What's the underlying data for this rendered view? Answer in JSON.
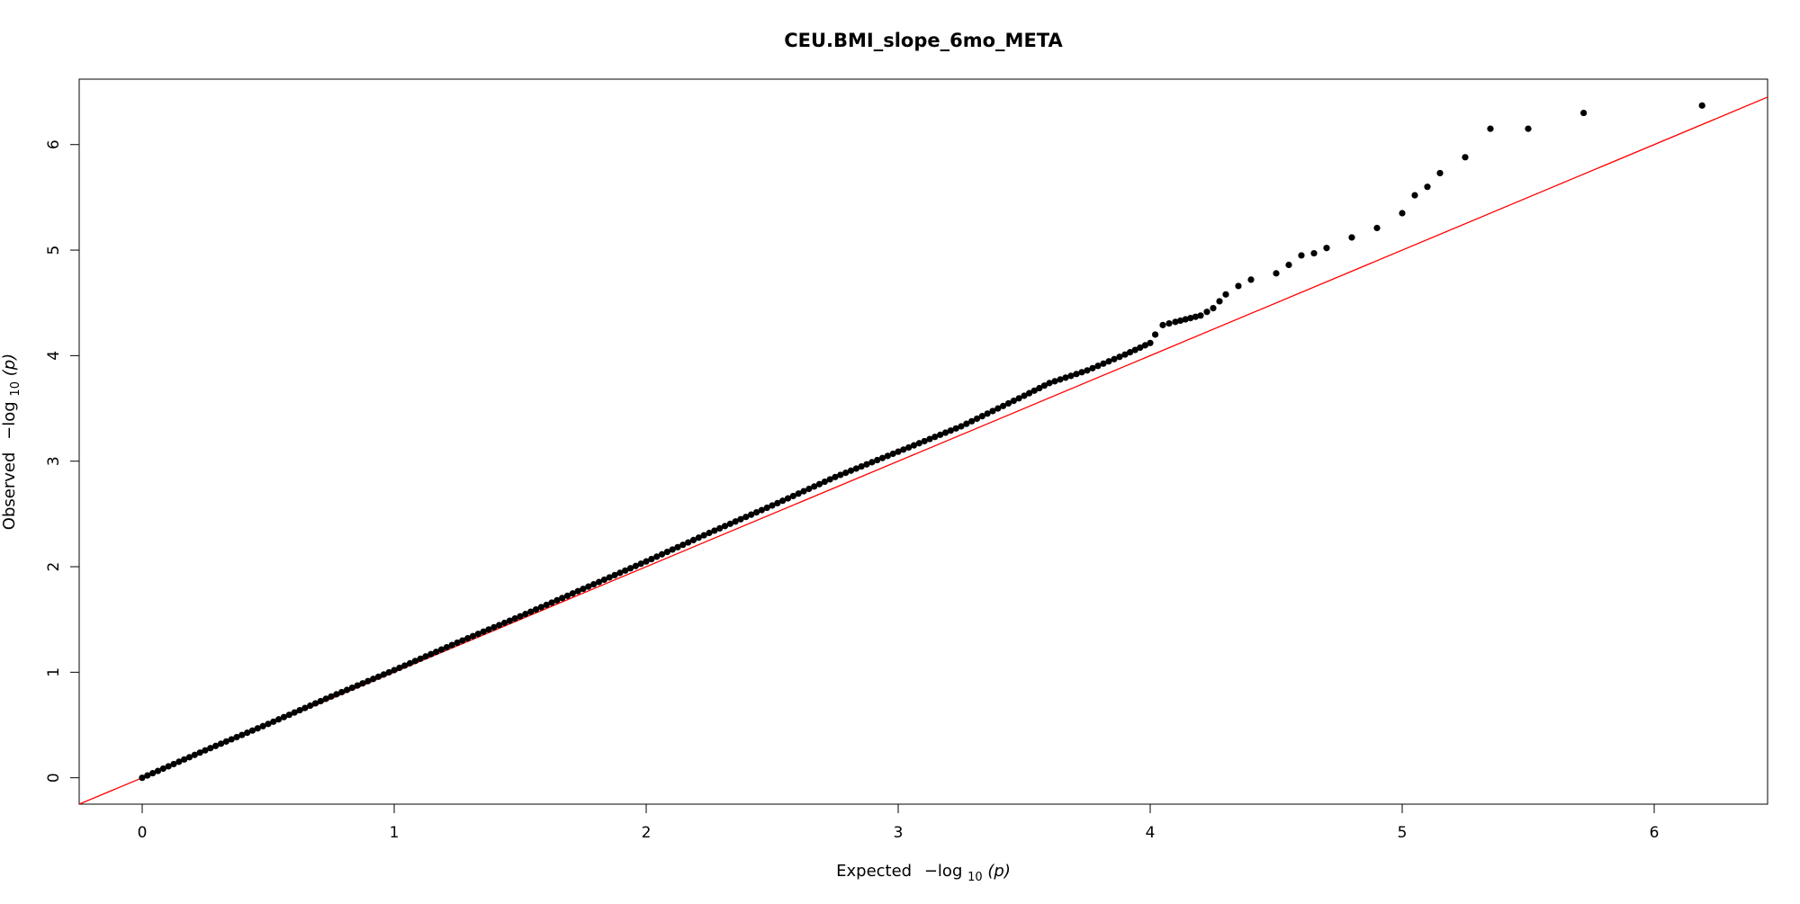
{
  "chart_data": {
    "type": "scatter",
    "title": "CEU.BMI_slope_6mo_META",
    "xlabel": {
      "prefix": "Expected",
      "minus_log": "−log",
      "sub": "10",
      "arg": "(p)"
    },
    "ylabel": {
      "prefix": "Observed",
      "minus_log": "−log",
      "sub": "10",
      "arg": "(p)"
    },
    "xlim": [
      -0.25,
      6.45
    ],
    "ylim": [
      -0.25,
      6.62
    ],
    "xticks": [
      0,
      1,
      2,
      3,
      4,
      5,
      6
    ],
    "yticks": [
      0,
      1,
      2,
      3,
      4,
      5,
      6
    ],
    "grid": false,
    "reference_line": {
      "slope": 1,
      "intercept": 0,
      "color": "#ff0000"
    },
    "point_color": "#000000",
    "series": [
      {
        "points": [
          [
            0.0,
            0.0
          ],
          [
            0.25,
            0.26
          ],
          [
            0.5,
            0.51
          ],
          [
            0.75,
            0.77
          ],
          [
            1.0,
            1.02
          ],
          [
            1.25,
            1.28
          ],
          [
            1.5,
            1.53
          ],
          [
            1.75,
            1.79
          ],
          [
            2.0,
            2.05
          ],
          [
            2.25,
            2.32
          ],
          [
            2.5,
            2.58
          ],
          [
            2.75,
            2.85
          ],
          [
            3.0,
            3.09
          ],
          [
            3.25,
            3.33
          ],
          [
            3.5,
            3.62
          ],
          [
            3.6,
            3.74
          ],
          [
            3.75,
            3.86
          ],
          [
            3.9,
            4.01
          ],
          [
            4.0,
            4.12
          ],
          [
            4.02,
            4.2
          ],
          [
            4.05,
            4.29
          ],
          [
            4.1,
            4.32
          ],
          [
            4.2,
            4.38
          ],
          [
            4.25,
            4.45
          ],
          [
            4.3,
            4.58
          ],
          [
            4.35,
            4.66
          ],
          [
            4.4,
            4.72
          ],
          [
            4.5,
            4.78
          ],
          [
            4.55,
            4.86
          ],
          [
            4.6,
            4.95
          ],
          [
            4.65,
            4.97
          ],
          [
            4.7,
            5.02
          ],
          [
            4.8,
            5.12
          ],
          [
            4.9,
            5.21
          ],
          [
            5.0,
            5.35
          ],
          [
            5.05,
            5.52
          ],
          [
            5.1,
            5.6
          ],
          [
            5.15,
            5.73
          ],
          [
            5.25,
            5.88
          ],
          [
            5.35,
            6.15
          ],
          [
            5.5,
            6.15
          ],
          [
            5.72,
            6.3
          ],
          [
            6.19,
            6.37
          ]
        ]
      }
    ]
  }
}
